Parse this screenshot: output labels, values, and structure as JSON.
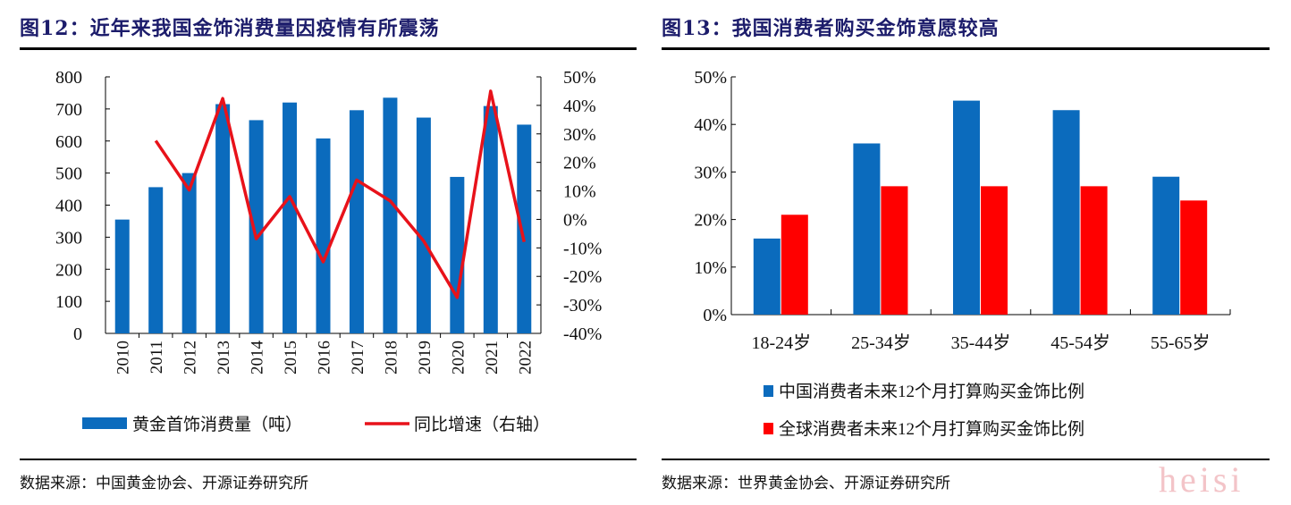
{
  "left": {
    "title": "图12：近年来我国金饰消费量因疫情有所震荡",
    "source": "数据来源：中国黄金协会、开源证券研究所"
  },
  "right": {
    "title": "图13：我国消费者购买金饰意愿较高",
    "source": "数据来源：世界黄金协会、开源证券研究所"
  },
  "watermark": "heisi",
  "chart_data": [
    {
      "type": "bar+line",
      "categories": [
        "2010",
        "2011",
        "2012",
        "2013",
        "2014",
        "2015",
        "2016",
        "2017",
        "2018",
        "2019",
        "2020",
        "2021",
        "2022"
      ],
      "series": [
        {
          "name": "黄金首饰消费量（吨）",
          "type": "bar",
          "axis": "left",
          "color": "#0b6bbd",
          "values": [
            355,
            456,
            500,
            715,
            665,
            720,
            608,
            696,
            735,
            673,
            488,
            709,
            651
          ]
        },
        {
          "name": "同比增速（右轴）",
          "type": "line",
          "axis": "right",
          "color": "#e8121a",
          "values": [
            null,
            27.6,
            10.3,
            42.4,
            -6.8,
            8.0,
            -14.9,
            13.8,
            6.5,
            -7.6,
            -27.4,
            45.0,
            -7.9
          ]
        }
      ],
      "ylim": [
        0,
        800
      ],
      "yticks": [
        "0",
        "100",
        "200",
        "300",
        "400",
        "500",
        "600",
        "700",
        "800"
      ],
      "y2lim": [
        -40,
        50
      ],
      "y2ticks": [
        "-40%",
        "-30%",
        "-20%",
        "-10%",
        "0%",
        "10%",
        "20%",
        "30%",
        "40%",
        "50%"
      ],
      "legend": "bottom"
    },
    {
      "type": "bar",
      "categories": [
        "18-24岁",
        "25-34岁",
        "35-44岁",
        "45-54岁",
        "55-65岁"
      ],
      "series": [
        {
          "name": "中国消费者未来12个月打算购买金饰比例",
          "color": "#0b6bbd",
          "values": [
            16,
            36,
            45,
            43,
            29
          ]
        },
        {
          "name": "全球消费者未来12个月打算购买金饰比例",
          "color": "#ff0000",
          "values": [
            21,
            27,
            27,
            27,
            24
          ]
        }
      ],
      "ylim": [
        0,
        50
      ],
      "yticks": [
        "0%",
        "10%",
        "20%",
        "30%",
        "40%",
        "50%"
      ],
      "legend": "bottom"
    }
  ]
}
